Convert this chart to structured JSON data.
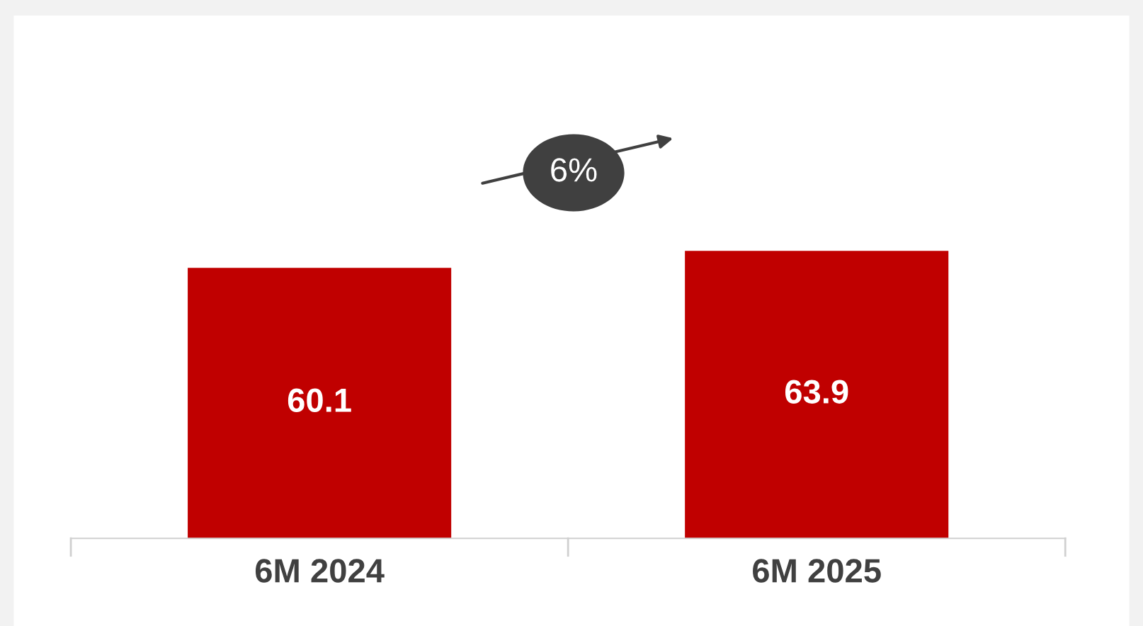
{
  "chart_data": {
    "type": "bar",
    "categories": [
      "6M 2024",
      "6M 2025"
    ],
    "values": [
      60.1,
      63.9
    ],
    "color": "#c00000",
    "data_labels": true,
    "annotations": [
      "6%"
    ],
    "grid": false,
    "legend": false
  }
}
